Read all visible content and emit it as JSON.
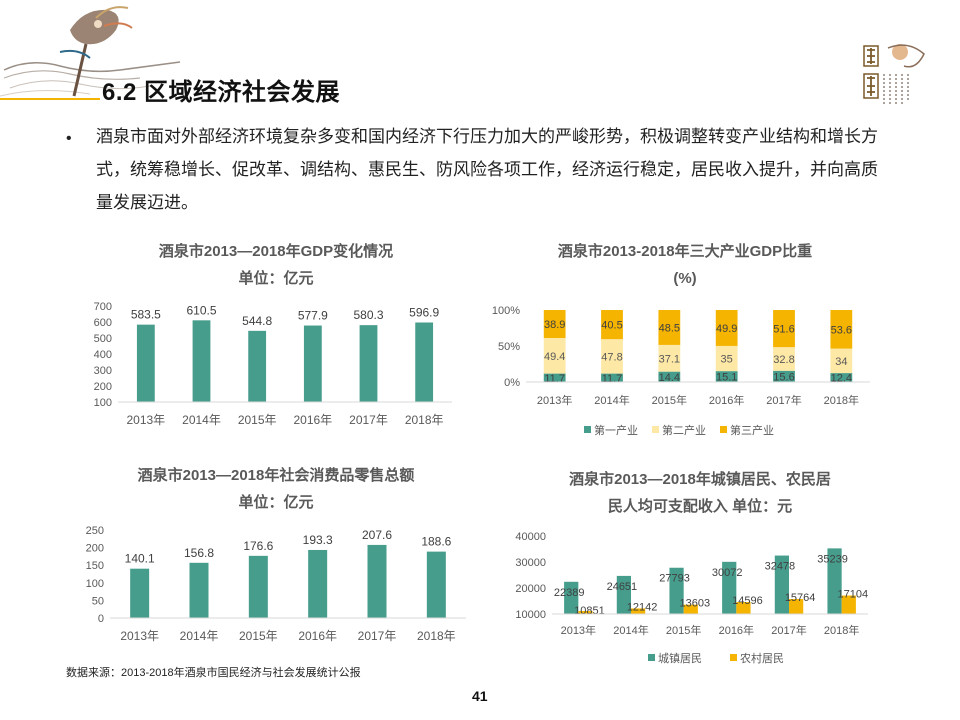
{
  "header": {
    "title": "6.2 区域经济社会发展",
    "bullet": "•",
    "intro": "酒泉市面对外部经济环境复杂多变和国内经济下行压力加大的严峻形势，积极调整转变产业结构和增长方式，统筹稳增长、促改革、调结构、惠民生、防风险各项工作，经济运行稳定，居民收入提升，并向高质量发展迈进。"
  },
  "colors": {
    "teal": "#469d8c",
    "gold": "#f5b400",
    "beige": "#fde8a6",
    "axis": "#d9d9d9",
    "text": "#595959"
  },
  "footer": {
    "source": "数据来源：2013-2018年酒泉市国民经济与社会发展统计公报",
    "page_number": "41"
  },
  "chart_data": [
    {
      "id": "gdp",
      "type": "bar",
      "title": "酒泉市2013—2018年GDP变化情况\n单位：亿元",
      "categories": [
        "2013年",
        "2014年",
        "2015年",
        "2016年",
        "2017年",
        "2018年"
      ],
      "values": [
        583.5,
        610.5,
        544.8,
        577.9,
        580.3,
        596.9
      ],
      "labels": [
        "583.5",
        "610.5",
        "544.8",
        "577.9",
        "580.3",
        "596.9"
      ],
      "ylim": [
        100,
        700
      ],
      "yticks": [
        "100",
        "200",
        "300",
        "400",
        "500",
        "600",
        "700"
      ],
      "grid": false
    },
    {
      "id": "industry",
      "type": "bar",
      "stacked": true,
      "title": "酒泉市2013-2018年三大产业GDP比重\n(%)",
      "categories": [
        "2013年",
        "2014年",
        "2015年",
        "2016年",
        "2017年",
        "2018年"
      ],
      "series": [
        {
          "name": "第一产业",
          "values": [
            11.7,
            11.7,
            14.4,
            15.1,
            15.6,
            12.4
          ],
          "labels": [
            "11.7",
            "11.7",
            "14.4",
            "15.1",
            "15.6",
            "12.4"
          ]
        },
        {
          "name": "第二产业",
          "values": [
            49.4,
            47.8,
            37.1,
            35,
            32.8,
            34
          ],
          "labels": [
            "49.4",
            "47.8",
            "37.1",
            "35",
            "32.8",
            "34"
          ]
        },
        {
          "name": "第三产业",
          "values": [
            38.9,
            40.5,
            48.5,
            49.9,
            51.6,
            53.6
          ],
          "labels": [
            "38.9",
            "40.5",
            "48.5",
            "49.9",
            "51.6",
            "53.6"
          ]
        }
      ],
      "ylim": [
        0,
        100
      ],
      "yticks": [
        "0%",
        "50%",
        "100%"
      ],
      "legend": "bottom",
      "grid": false
    },
    {
      "id": "retail",
      "type": "bar",
      "title": "酒泉市2013—2018年社会消费品零售总额\n单位：亿元",
      "categories": [
        "2013年",
        "2014年",
        "2015年",
        "2016年",
        "2017年",
        "2018年"
      ],
      "values": [
        140.1,
        156.8,
        176.6,
        193.3,
        207.6,
        188.6
      ],
      "labels": [
        "140.1",
        "156.8",
        "176.6",
        "193.3",
        "207.6",
        "188.6"
      ],
      "ylim": [
        0,
        250
      ],
      "yticks": [
        "0",
        "50",
        "100",
        "150",
        "200",
        "250"
      ],
      "grid": false
    },
    {
      "id": "income",
      "type": "bar",
      "title": "酒泉市2013—2018年城镇居民、农民居\n民人均可支配收入  单位：元",
      "categories": [
        "2013年",
        "2014年",
        "2015年",
        "2016年",
        "2017年",
        "2018年"
      ],
      "series": [
        {
          "name": "城镇居民",
          "values": [
            22389,
            24651,
            27793,
            30072,
            32478,
            35239
          ],
          "labels": [
            "22389",
            "24651",
            "27793",
            "30072",
            "32478",
            "35239"
          ]
        },
        {
          "name": "农村居民",
          "values": [
            10851,
            12142,
            13603,
            14596,
            15764,
            17104
          ],
          "labels": [
            "10851",
            "12142",
            "13603",
            "14596",
            "15764",
            "17104"
          ]
        }
      ],
      "ylim": [
        10000,
        40000
      ],
      "yticks": [
        "10000",
        "20000",
        "30000",
        "40000"
      ],
      "legend": "bottom",
      "grid": false
    }
  ]
}
